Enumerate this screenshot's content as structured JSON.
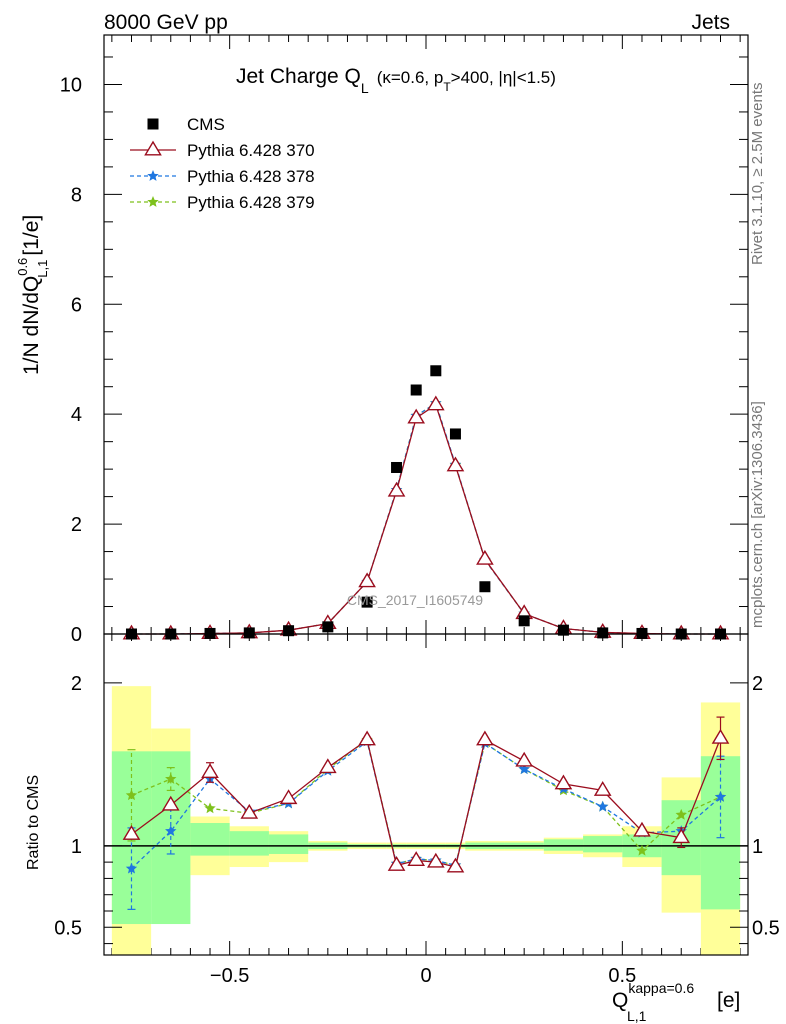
{
  "header": {
    "left": "8000 GeV pp",
    "right": "Jets"
  },
  "side_labels": {
    "rivet": "Rivet 3.1.10, ≥ 2.5M events",
    "mcplots": "mcplots.cern.ch [arXiv:1306.3436]"
  },
  "watermark": "CMS_2017_I1605749",
  "title": {
    "main": "Jet Charge Q",
    "main_sub": "L",
    "detail_1": "(κ=0.6, p",
    "detail_sub": "T",
    "detail_2": ">400, |η|<1.5)"
  },
  "axes": {
    "y_top_label": "1/N dN/dQ",
    "y_top_sup": "0.6",
    "y_top_sub": "L,1",
    "y_top_unit": "[1/e]",
    "y_bottom_label": "Ratio to CMS",
    "x_label": "Q",
    "x_sup": "kappa=0.6",
    "x_sub": "L,1",
    "x_unit": "[e]"
  },
  "legend": [
    {
      "label": "CMS",
      "color": "#000000",
      "marker": "square",
      "dash": "none"
    },
    {
      "label": "Pythia 6.428 370",
      "color": "#9b0d1e",
      "marker": "triangle",
      "dash": "solid"
    },
    {
      "label": "Pythia 6.428 378",
      "color": "#1f77e0",
      "marker": "star",
      "dash": "dashed"
    },
    {
      "label": "Pythia 6.428 379",
      "color": "#7ec11c",
      "marker": "star",
      "dash": "dashed"
    }
  ],
  "chart_data": {
    "type": "line",
    "xlim": [
      -0.82,
      0.82
    ],
    "ylim_top": [
      0,
      10.9
    ],
    "ylim_ratio": [
      0.33,
      2.3
    ],
    "x_ticks": [
      -0.5,
      0,
      0.5
    ],
    "y_ticks_top": [
      0,
      2,
      4,
      6,
      8,
      10
    ],
    "y_ticks_ratio": [
      0.5,
      1,
      2
    ],
    "x": [
      -0.75,
      -0.65,
      -0.55,
      -0.45,
      -0.35,
      -0.25,
      -0.15,
      -0.075,
      -0.025,
      0.025,
      0.075,
      0.15,
      0.25,
      0.35,
      0.45,
      0.55,
      0.65,
      0.75
    ],
    "bin_edges": [
      -0.8,
      -0.7,
      -0.6,
      -0.5,
      -0.4,
      -0.3,
      -0.2,
      -0.1,
      -0.05,
      0,
      0.05,
      0.1,
      0.2,
      0.3,
      0.4,
      0.5,
      0.6,
      0.7,
      0.8
    ],
    "data": {
      "name": "CMS",
      "values": [
        0.0,
        0.0,
        0.01,
        0.02,
        0.06,
        0.13,
        0.58,
        3.03,
        4.44,
        4.79,
        3.64,
        0.86,
        0.24,
        0.07,
        0.02,
        0.01,
        0.0,
        0.0
      ]
    },
    "series": [
      {
        "name": "Pythia 6.428 370",
        "values": [
          0.0,
          0.0,
          0.01,
          0.02,
          0.07,
          0.19,
          0.95,
          2.6,
          3.93,
          4.17,
          3.06,
          1.36,
          0.37,
          0.1,
          0.03,
          0.01,
          0.0,
          0.0
        ],
        "ratio": [
          1.07,
          1.25,
          1.45,
          1.2,
          1.29,
          1.48,
          1.65,
          0.88,
          0.91,
          0.9,
          0.87,
          1.65,
          1.52,
          1.38,
          1.34,
          1.09,
          1.05,
          1.66
        ]
      },
      {
        "name": "Pythia 6.428 378",
        "values": [
          0.0,
          0.0,
          0.01,
          0.02,
          0.07,
          0.19,
          0.95,
          2.62,
          3.97,
          4.2,
          3.08,
          1.35,
          0.37,
          0.1,
          0.03,
          0.01,
          0.0,
          0.0
        ],
        "ratio": [
          0.86,
          1.09,
          1.41,
          1.21,
          1.26,
          1.46,
          1.64,
          0.89,
          0.92,
          0.91,
          0.88,
          1.63,
          1.47,
          1.35,
          1.24,
          1.08,
          1.09,
          1.3
        ]
      },
      {
        "name": "Pythia 6.428 379",
        "values": [
          0.0,
          0.0,
          0.01,
          0.02,
          0.07,
          0.19,
          0.95,
          2.62,
          3.97,
          4.2,
          3.07,
          1.35,
          0.37,
          0.1,
          0.03,
          0.01,
          0.0,
          0.0
        ],
        "ratio": [
          1.31,
          1.41,
          1.23,
          1.2,
          1.26,
          1.47,
          1.65,
          0.89,
          0.92,
          0.91,
          0.88,
          1.63,
          1.47,
          1.34,
          1.24,
          0.97,
          1.19,
          1.3
        ]
      }
    ],
    "ratio_errors": {
      "Pythia 6.428 370": [
        0.0,
        0.0,
        0.06,
        0.0,
        0.0,
        0.0,
        0.0,
        0.0,
        0.0,
        0.0,
        0.0,
        0.0,
        0.0,
        0.0,
        0.0,
        0.0,
        0.06,
        0.13
      ],
      "Pythia 6.428 378": [
        0.25,
        0.14,
        0.0,
        0.0,
        0.0,
        0.0,
        0.0,
        0.0,
        0.0,
        0.0,
        0.0,
        0.0,
        0.0,
        0.0,
        0.0,
        0.0,
        0.0,
        0.25
      ],
      "Pythia 6.428 379": [
        0.28,
        0.07,
        0.0,
        0.0,
        0.0,
        0.0,
        0.0,
        0.0,
        0.0,
        0.0,
        0.0,
        0.0,
        0.0,
        0.0,
        0.0,
        0.0,
        0.0,
        0.0
      ]
    },
    "uncertainty_band_green": [
      [
        0.52,
        1.58
      ],
      [
        0.52,
        1.58
      ],
      [
        0.94,
        1.14
      ],
      [
        0.94,
        1.09
      ],
      [
        0.95,
        1.07
      ],
      [
        0.98,
        1.02
      ],
      [
        0.99,
        1.01
      ],
      [
        0.99,
        1.01
      ],
      [
        0.99,
        1.01
      ],
      [
        0.99,
        1.01
      ],
      [
        0.99,
        1.01
      ],
      [
        0.98,
        1.02
      ],
      [
        0.98,
        1.02
      ],
      [
        0.97,
        1.04
      ],
      [
        0.96,
        1.06
      ],
      [
        0.93,
        1.07
      ],
      [
        0.82,
        1.28
      ],
      [
        0.61,
        1.55
      ]
    ],
    "uncertainty_band_yellow": [
      [
        0.33,
        1.98
      ],
      [
        0.72,
        1.72
      ],
      [
        0.82,
        1.18
      ],
      [
        0.87,
        1.12
      ],
      [
        0.9,
        1.09
      ],
      [
        0.97,
        1.03
      ],
      [
        0.98,
        1.02
      ],
      [
        0.98,
        1.02
      ],
      [
        0.98,
        1.02
      ],
      [
        0.98,
        1.02
      ],
      [
        0.98,
        1.02
      ],
      [
        0.97,
        1.03
      ],
      [
        0.97,
        1.03
      ],
      [
        0.95,
        1.05
      ],
      [
        0.93,
        1.07
      ],
      [
        0.87,
        1.12
      ],
      [
        0.59,
        1.42
      ],
      [
        0.33,
        1.88
      ]
    ]
  }
}
